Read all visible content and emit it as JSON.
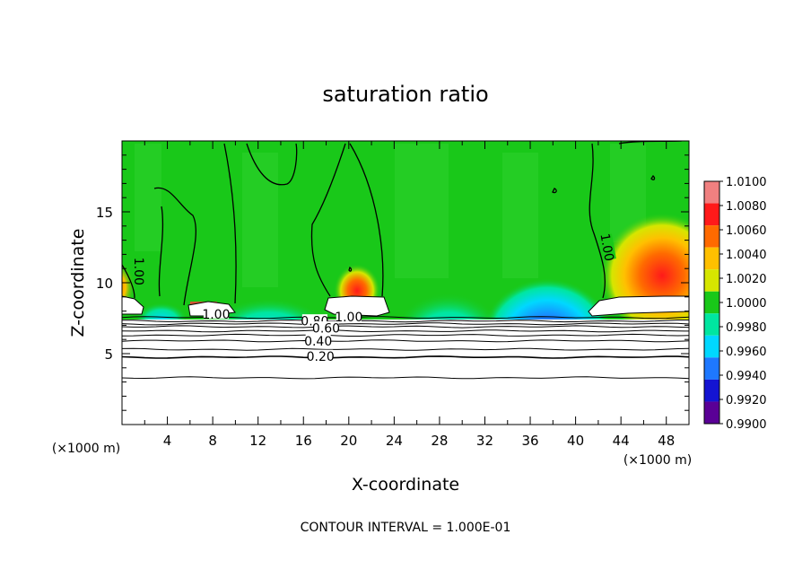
{
  "chart_data": {
    "type": "heatmap",
    "title": "saturation ratio",
    "xlabel": "X-coordinate",
    "ylabel": "Z-coordinate",
    "x_unit_left": "(×1000 m)",
    "x_unit_right": "(×1000 m)",
    "footer": "CONTOUR INTERVAL = 1.000E-01",
    "xlim": [
      0,
      50
    ],
    "ylim": [
      0,
      20
    ],
    "x_ticks": [
      4,
      8,
      12,
      16,
      20,
      24,
      28,
      32,
      36,
      40,
      44,
      48
    ],
    "y_ticks": [
      5,
      10,
      15
    ],
    "grid": false,
    "colorbar": {
      "position": "right",
      "levels": [
        "1.0100",
        "1.0080",
        "1.0060",
        "1.0040",
        "1.0020",
        "1.0000",
        "0.9980",
        "0.9960",
        "0.9940",
        "0.9920",
        "0.9900"
      ],
      "colors": [
        "#f08080",
        "#ff1a1a",
        "#ff6a00",
        "#ffc000",
        "#d6e600",
        "#19c819",
        "#00e6a0",
        "#00d8ff",
        "#1e78ff",
        "#1414d2",
        "#5a0096"
      ],
      "range": [
        0.99,
        1.01
      ]
    },
    "contour_interval": 0.1,
    "contour_labels": [
      {
        "text": "1.00",
        "x": 1.5,
        "z": 10.8
      },
      {
        "text": "1.00",
        "x": 8.3,
        "z": 7.8
      },
      {
        "text": "0.80",
        "x": 17.0,
        "z": 7.3
      },
      {
        "text": "1.00",
        "x": 20.0,
        "z": 7.6
      },
      {
        "text": "0.60",
        "x": 18.0,
        "z": 6.8
      },
      {
        "text": "0.40",
        "x": 17.3,
        "z": 5.9
      },
      {
        "text": "0.20",
        "x": 17.5,
        "z": 4.8
      },
      {
        "text": "1.00",
        "x": 42.8,
        "z": 12.5
      }
    ],
    "stable_contour_heights": [
      7.55,
      7.3,
      7.1,
      6.9,
      6.6,
      6.3,
      5.9,
      5.3,
      4.75,
      3.3
    ],
    "saturated_regions": [
      {
        "x": [
          0,
          2
        ],
        "z": [
          8.3,
          9.8
        ]
      },
      {
        "x": [
          6,
          10.5
        ],
        "z": [
          7.6,
          8.5
        ]
      },
      {
        "x": [
          18,
          23
        ],
        "z": [
          7.7,
          9.1
        ]
      },
      {
        "x": [
          41.5,
          50
        ],
        "z": [
          7.8,
          9.3
        ]
      }
    ]
  }
}
